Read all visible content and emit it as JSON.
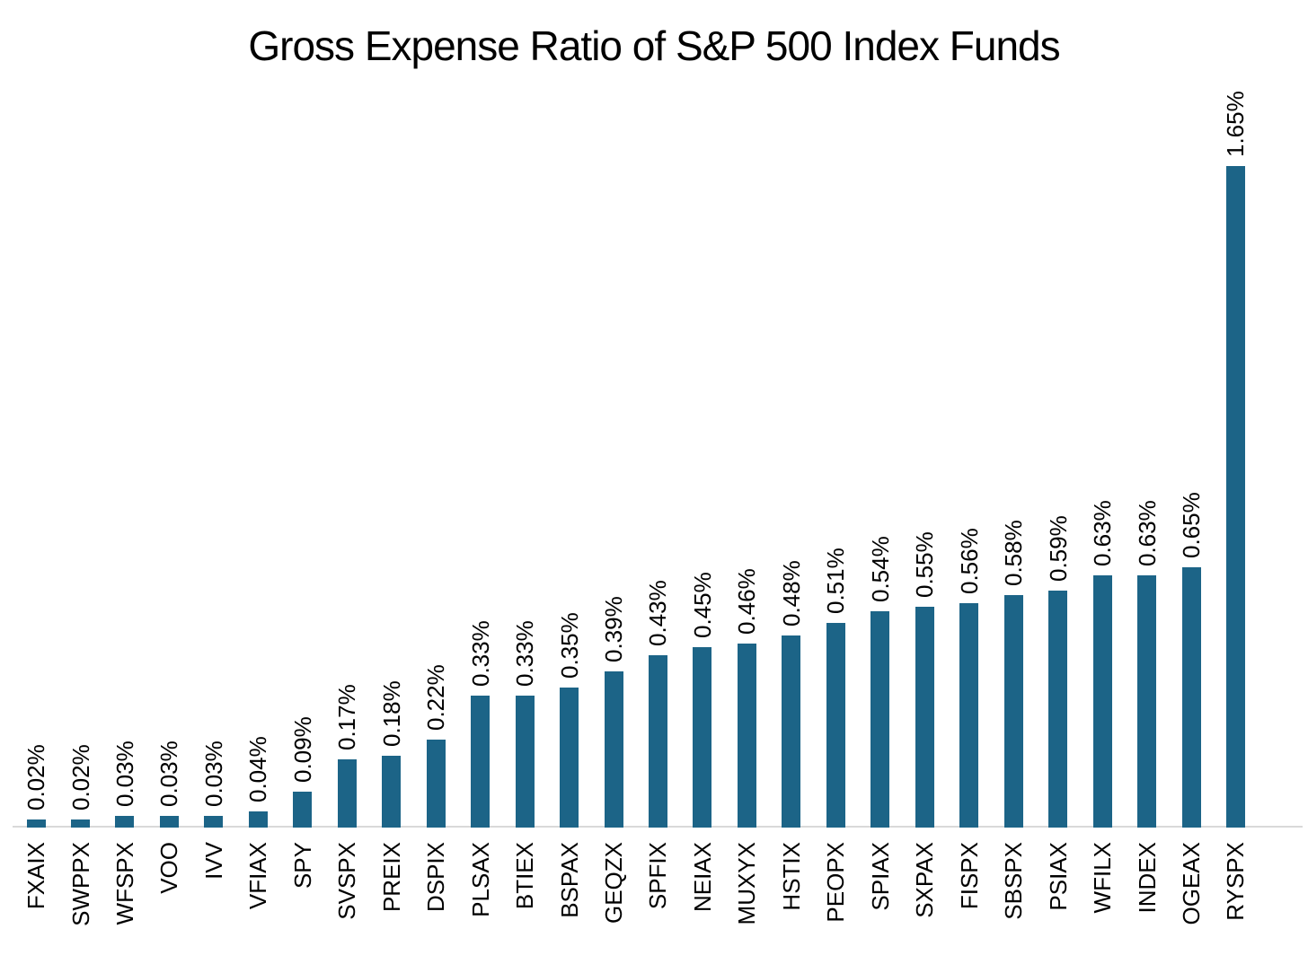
{
  "chart_data": {
    "type": "bar",
    "title": "Gross Expense Ratio of S&P 500 Index Funds",
    "xlabel": "",
    "ylabel": "",
    "categories": [
      "FXAIX",
      "SWPPX",
      "WFSPX",
      "VOO",
      "IVV",
      "VFIAX",
      "SPY",
      "SVSPX",
      "PREIX",
      "DSPIX",
      "PLSAX",
      "BTIEX",
      "BSPAX",
      "GEQZX",
      "SPFIX",
      "NEIAX",
      "MUXYX",
      "HSTIX",
      "PEOPX",
      "SPIAX",
      "SXPAX",
      "FISPX",
      "SBSPX",
      "PSIAX",
      "WFILX",
      "INDEX",
      "OGEAX",
      "RYSPX"
    ],
    "values": [
      0.02,
      0.02,
      0.03,
      0.03,
      0.03,
      0.04,
      0.09,
      0.17,
      0.18,
      0.22,
      0.33,
      0.33,
      0.35,
      0.39,
      0.43,
      0.45,
      0.46,
      0.48,
      0.51,
      0.54,
      0.55,
      0.56,
      0.58,
      0.59,
      0.63,
      0.63,
      0.65,
      1.65
    ],
    "value_labels": [
      "0.02%",
      "0.02%",
      "0.03%",
      "0.03%",
      "0.03%",
      "0.04%",
      "0.09%",
      "0.17%",
      "0.18%",
      "0.22%",
      "0.33%",
      "0.33%",
      "0.35%",
      "0.39%",
      "0.43%",
      "0.45%",
      "0.46%",
      "0.48%",
      "0.51%",
      "0.54%",
      "0.55%",
      "0.56%",
      "0.58%",
      "0.59%",
      "0.63%",
      "0.63%",
      "0.65%",
      "1.65%"
    ],
    "ylim": [
      0,
      1.75
    ],
    "grid": false,
    "legend": false,
    "bar_value_label_rotation_deg": 90,
    "x_tick_label_rotation_deg": 90,
    "colors": {
      "bar": "#1C6487",
      "axis_line": "#D9D9D9",
      "text": "#000000",
      "background": "#FFFFFF"
    }
  }
}
